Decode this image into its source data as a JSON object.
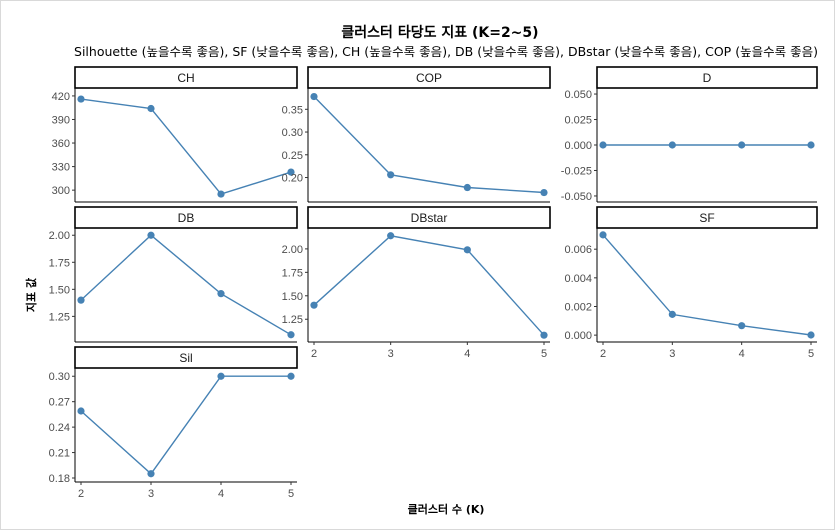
{
  "chart_data": {
    "type": "line",
    "title": "클러스터 타당도 지표 (K=2~5)",
    "subtitle": "Silhouette (높을수록 좋음), SF (낮을수록 좋음), CH (높을수록 좋음), DB (낮을수록 좋음), DBstar (낮을수록 좋음), COP (높을수록 좋음)",
    "xlabel": "클러스터 수 (K)",
    "ylabel": "지표 값",
    "x": [
      2,
      3,
      4,
      5
    ],
    "line_color": "#4682b4",
    "grid": false,
    "panels": [
      {
        "name": "CH",
        "values": [
          416,
          404,
          295,
          323
        ],
        "ylim": [
          290,
          425
        ],
        "yticks": [
          {
            "v": 300,
            "label": "300"
          },
          {
            "v": 330,
            "label": "330"
          },
          {
            "v": 360,
            "label": "360"
          },
          {
            "v": 390,
            "label": "390"
          },
          {
            "v": 420,
            "label": "420"
          }
        ]
      },
      {
        "name": "COP",
        "values": [
          0.378,
          0.206,
          0.178,
          0.167
        ],
        "ylim": [
          0.155,
          0.388
        ],
        "yticks": [
          {
            "v": 0.2,
            "label": "0.20"
          },
          {
            "v": 0.25,
            "label": "0.25"
          },
          {
            "v": 0.3,
            "label": "0.30"
          },
          {
            "v": 0.35,
            "label": "0.35"
          }
        ]
      },
      {
        "name": "D",
        "values": [
          0,
          0,
          0,
          0
        ],
        "ylim": [
          -0.052,
          0.052
        ],
        "yticks": [
          {
            "v": -0.05,
            "label": "-0.050"
          },
          {
            "v": -0.025,
            "label": "-0.025"
          },
          {
            "v": 0,
            "label": "0.000"
          },
          {
            "v": 0.025,
            "label": "0.025"
          },
          {
            "v": 0.05,
            "label": "0.050"
          }
        ]
      },
      {
        "name": "DB",
        "values": [
          1.4,
          2.0,
          1.46,
          1.08
        ],
        "ylim": [
          1.05,
          2.03
        ],
        "yticks": [
          {
            "v": 1.25,
            "label": "1.25"
          },
          {
            "v": 1.5,
            "label": "1.50"
          },
          {
            "v": 1.75,
            "label": "1.75"
          },
          {
            "v": 2.0,
            "label": "2.00"
          }
        ]
      },
      {
        "name": "DBstar",
        "values": [
          1.4,
          2.14,
          1.99,
          1.08
        ],
        "ylim": [
          1.05,
          2.18
        ],
        "yticks": [
          {
            "v": 1.25,
            "label": "1.25"
          },
          {
            "v": 1.5,
            "label": "1.50"
          },
          {
            "v": 1.75,
            "label": "1.75"
          },
          {
            "v": 2.0,
            "label": "2.00"
          }
        ]
      },
      {
        "name": "SF",
        "values": [
          0.007,
          0.00145,
          0.00066,
          1e-05
        ],
        "ylim": [
          -0.0002,
          0.0072
        ],
        "yticks": [
          {
            "v": 0,
            "label": "0.000"
          },
          {
            "v": 0.002,
            "label": "0.002"
          },
          {
            "v": 0.004,
            "label": "0.004"
          },
          {
            "v": 0.006,
            "label": "0.006"
          }
        ]
      },
      {
        "name": "Sil",
        "values": [
          0.259,
          0.185,
          0.3,
          0.3
        ],
        "ylim": [
          0.18,
          0.305
        ],
        "yticks": [
          {
            "v": 0.18,
            "label": "0.18"
          },
          {
            "v": 0.21,
            "label": "0.21"
          },
          {
            "v": 0.24,
            "label": "0.24"
          },
          {
            "v": 0.27,
            "label": "0.27"
          },
          {
            "v": 0.3,
            "label": "0.30"
          }
        ]
      }
    ],
    "xtick_labels": [
      "2",
      "3",
      "4",
      "5"
    ]
  }
}
